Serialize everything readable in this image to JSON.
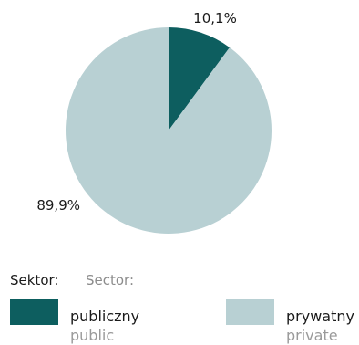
{
  "chart_data": {
    "type": "pie",
    "categories": [
      "publiczny",
      "prywatny"
    ],
    "values": [
      10.1,
      89.9
    ],
    "value_labels": [
      "10,1%",
      "89,9%"
    ],
    "colors": [
      "#0d5e5f",
      "#b8d0d3"
    ],
    "start_angle_deg": 0,
    "direction": "clockwise",
    "legend": {
      "title_pl": "Sektor:",
      "title_en": "Sector:",
      "placement": "bottom",
      "items": [
        {
          "label_pl": "publiczny",
          "label_en": "public",
          "color": "#0d5e5f"
        },
        {
          "label_pl": "prywatny",
          "label_en": "private",
          "color": "#b8d0d3"
        }
      ]
    }
  }
}
